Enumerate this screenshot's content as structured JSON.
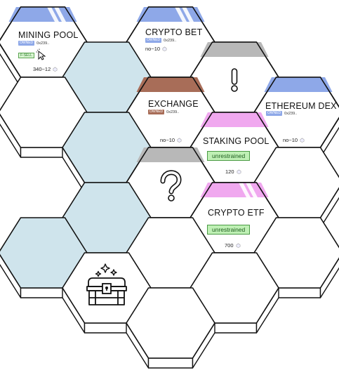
{
  "colors": {
    "owned_blue": "#8ea8e8",
    "owned_brown": "#a86d58",
    "pink": "#f0a8ef",
    "grey_band": "#b8b8b8",
    "water": "#cfe4ec",
    "green": "#bff0b5"
  },
  "tiles": {
    "mining_pool": {
      "title": "MINING POOL",
      "owned": "OWNED",
      "address": "0x239..",
      "action": "F-SELL",
      "stat": "340~12"
    },
    "crypto_bet": {
      "title": "CRYPTO BET",
      "owned": "OWNED",
      "address": "0x239..",
      "stat": "no~10"
    },
    "exchange": {
      "title": "EXCHANGE",
      "owned": "OWNED",
      "address": "0x239..",
      "stat": "no~10"
    },
    "ethereum_dex": {
      "title": "ETHEREUM DEX",
      "owned": "OWNED",
      "address": "0x239..",
      "stat": "no~10"
    },
    "staking_pool": {
      "title": "STAKING POOL",
      "status": "unrestrained",
      "stat": "120"
    },
    "crypto_etf": {
      "title": "CRYPTO ETF",
      "status": "unrestrained",
      "stat": "700"
    }
  },
  "icons": {
    "alert": "exclamation-icon",
    "unknown": "question-mark-icon",
    "treasure": "treasure-chest-icon",
    "gem": "gem-icon",
    "cursor": "cursor-icon"
  }
}
